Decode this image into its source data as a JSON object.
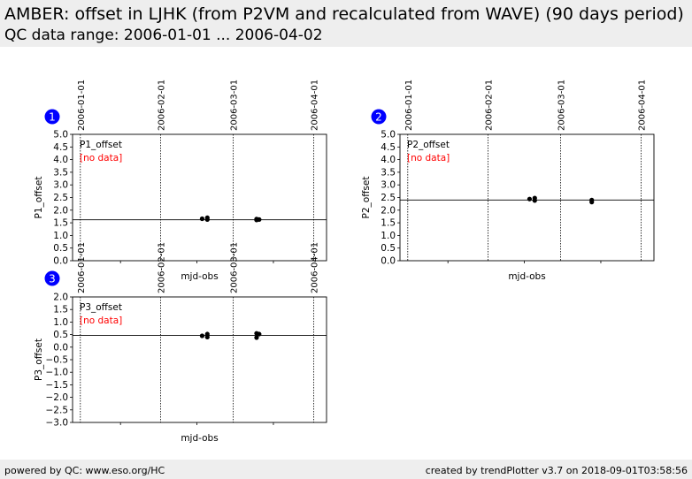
{
  "header": {
    "title": "AMBER: offset in LJHK (from P2VM and recalculated from WAVE) (90 days period)",
    "subtitle": "QC data range: 2006-01-01 ... 2006-04-02"
  },
  "footer": {
    "left": "powered by QC: www.eso.org/HC",
    "right": "created by trendPlotter v3.7 on 2018-09-01T03:58:56"
  },
  "colors": {
    "points": "#000000",
    "badge": "#0000ff",
    "no_data": "#ff0000",
    "band": "#eeeeee"
  },
  "chart_data": [
    {
      "type": "scatter",
      "badge": "1",
      "legend": "P1_offset",
      "status": "[no data]",
      "xlabel": "mjd-obs",
      "ylabel": "P1_offset",
      "date_ticks": [
        "2006-01-01",
        "2006-02-01",
        "2006-03-01",
        "2006-04-01"
      ],
      "xlim": [
        "2005-12-29",
        "2006-04-06"
      ],
      "ylim": [
        0.0,
        5.0
      ],
      "yticks": [
        0.0,
        0.5,
        1.0,
        1.5,
        2.0,
        2.5,
        3.0,
        3.5,
        4.0,
        4.5,
        5.0
      ],
      "yticklabels": [
        "0.0",
        "0.5",
        "1.0",
        "1.5",
        "2.0",
        "2.5",
        "3.0",
        "3.5",
        "4.0",
        "4.5",
        "5.0"
      ],
      "reference_line": 1.62,
      "points": [
        {
          "x": "2006-02-17",
          "y": 1.66
        },
        {
          "x": "2006-02-19",
          "y": 1.7
        },
        {
          "x": "2006-02-19",
          "y": 1.63
        },
        {
          "x": "2006-03-10",
          "y": 1.65
        },
        {
          "x": "2006-03-10",
          "y": 1.61
        },
        {
          "x": "2006-03-11",
          "y": 1.63
        }
      ]
    },
    {
      "type": "scatter",
      "badge": "2",
      "legend": "P2_offset",
      "status": "[no data]",
      "xlabel": "mjd-obs",
      "ylabel": "P2_offset",
      "date_ticks": [
        "2006-01-01",
        "2006-02-01",
        "2006-03-01",
        "2006-04-01"
      ],
      "xlim": [
        "2005-12-29",
        "2006-04-06"
      ],
      "ylim": [
        0.0,
        5.0
      ],
      "yticks": [
        0.0,
        0.5,
        1.0,
        1.5,
        2.0,
        2.5,
        3.0,
        3.5,
        4.0,
        4.5,
        5.0
      ],
      "yticklabels": [
        "0.0",
        "0.5",
        "1.0",
        "1.5",
        "2.0",
        "2.5",
        "3.0",
        "3.5",
        "4.0",
        "4.5",
        "5.0"
      ],
      "reference_line": 2.4,
      "points": [
        {
          "x": "2006-02-17",
          "y": 2.44
        },
        {
          "x": "2006-02-19",
          "y": 2.48
        },
        {
          "x": "2006-02-19",
          "y": 2.38
        },
        {
          "x": "2006-03-13",
          "y": 2.4
        },
        {
          "x": "2006-03-13",
          "y": 2.32
        }
      ]
    },
    {
      "type": "scatter",
      "badge": "3",
      "legend": "P3_offset",
      "status": "[no data]",
      "xlabel": "mjd-obs",
      "ylabel": "P3_offset",
      "date_ticks": [
        "2006-01-01",
        "2006-02-01",
        "2006-03-01",
        "2006-04-01"
      ],
      "xlim": [
        "2005-12-29",
        "2006-04-06"
      ],
      "ylim": [
        -3.0,
        2.0
      ],
      "yticks": [
        -3.0,
        -2.5,
        -2.0,
        -1.5,
        -1.0,
        -0.5,
        0.0,
        0.5,
        1.0,
        1.5,
        2.0
      ],
      "yticklabels": [
        "−3.0",
        "−2.5",
        "−2.0",
        "−1.5",
        "−1.0",
        "−0.5",
        "0.0",
        "0.5",
        "1.0",
        "1.5",
        "2.0"
      ],
      "reference_line": 0.47,
      "points": [
        {
          "x": "2006-02-17",
          "y": 0.45
        },
        {
          "x": "2006-02-19",
          "y": 0.52
        },
        {
          "x": "2006-02-19",
          "y": 0.4
        },
        {
          "x": "2006-03-10",
          "y": 0.55
        },
        {
          "x": "2006-03-10",
          "y": 0.38
        },
        {
          "x": "2006-03-11",
          "y": 0.52
        }
      ]
    }
  ]
}
